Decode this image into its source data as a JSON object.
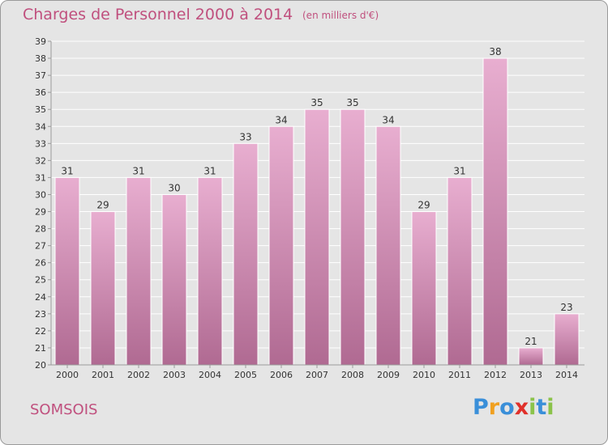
{
  "title": "Charges de Personnel 2000 à 2014",
  "subtitle": "(en milliers d'€)",
  "commune": "SOMSOIS",
  "logo": {
    "text": "Proxiti",
    "letters": [
      {
        "char": "P",
        "color": "#3a8fd9"
      },
      {
        "char": "r",
        "color": "#f0a020"
      },
      {
        "char": "o",
        "color": "#3a8fd9"
      },
      {
        "char": "x",
        "color": "#e0302a"
      },
      {
        "char": "i",
        "color": "#8bc34a"
      },
      {
        "char": "t",
        "color": "#3a8fd9"
      },
      {
        "char": "i",
        "color": "#8bc34a"
      }
    ]
  },
  "colors": {
    "bar_top": "#e8aed0",
    "bar_bottom": "#b06a92",
    "grid": "#ffffff",
    "axis": "#9a9a9a",
    "plot_bg": "#e5e5e5",
    "text": "#333333",
    "accent": "#c0507e"
  },
  "chart_data": {
    "type": "bar",
    "categories": [
      "2000",
      "2001",
      "2002",
      "2003",
      "2004",
      "2005",
      "2006",
      "2007",
      "2008",
      "2009",
      "2010",
      "2011",
      "2012",
      "2013",
      "2014"
    ],
    "values": [
      31,
      29,
      31,
      30,
      31,
      33,
      34,
      35,
      35,
      34,
      29,
      31,
      38,
      21,
      23
    ],
    "data_labels": [
      "31",
      "29",
      "31",
      "30",
      "31",
      "33",
      "34",
      "35",
      "35",
      "34",
      "29",
      "31",
      "38",
      "21",
      "23"
    ],
    "ylim": [
      20,
      39
    ],
    "yticks": [
      20,
      21,
      22,
      23,
      24,
      25,
      26,
      27,
      28,
      29,
      30,
      31,
      32,
      33,
      34,
      35,
      36,
      37,
      38,
      39
    ],
    "grid": true,
    "title": "Charges de Personnel 2000 à 2014",
    "xlabel": "",
    "ylabel": ""
  }
}
